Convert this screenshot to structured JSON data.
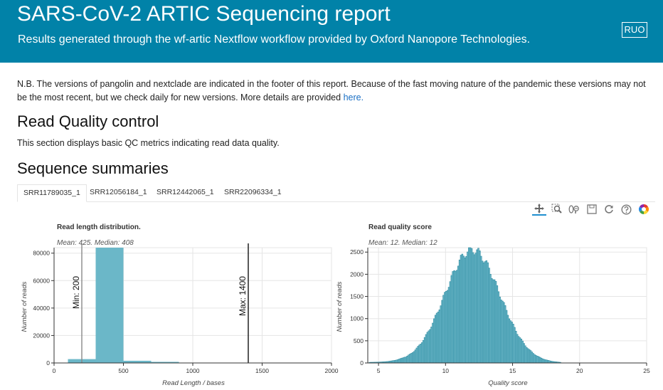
{
  "header": {
    "title": "SARS-CoV-2 ARTIC Sequencing report",
    "subtitle": "Results generated through the wf-artic Nextflow workflow provided by Oxford Nanopore Technologies.",
    "badge": "RUO"
  },
  "note": {
    "text": "N.B. The versions of pangolin and nextclade are indicated in the footer of this report. Because of the fast moving nature of the pandemic these versions may not be the most recent, but we check daily for new versions. More details are provided ",
    "link": "here."
  },
  "read_qc": {
    "heading": "Read Quality control",
    "description": "This section displays basic QC metrics indicating read data quality."
  },
  "seq": {
    "heading": "Sequence summaries",
    "tabs": [
      "SRR11789035_1",
      "SRR12056184_1",
      "SRR12442065_1",
      "SRR22096334_1"
    ],
    "active_tab": 0
  },
  "toolbar": {
    "icons": [
      "pan-icon",
      "box-zoom-icon",
      "wheel-zoom-icon",
      "save-icon",
      "reset-icon",
      "help-icon",
      "bokeh-logo-icon"
    ]
  },
  "colors": {
    "banner": "#0182a8",
    "bar": "#6bb7c8",
    "bar_stroke": "#2c8aa0"
  },
  "chart_data": [
    {
      "type": "bar",
      "title": "Read length distribution.",
      "subtitle": "Mean: 425. Median: 408",
      "xlabel": "Read Length / bases",
      "ylabel": "Number of reads",
      "xlim": [
        0,
        2000
      ],
      "ylim": [
        0,
        84000
      ],
      "xticks": [
        "0",
        "500",
        "1000",
        "1500",
        "2000"
      ],
      "xtick_values": [
        0,
        500,
        1000,
        1500,
        2000
      ],
      "yticks": [
        "0",
        "20000",
        "40000",
        "60000",
        "80000"
      ],
      "ytick_values": [
        0,
        20000,
        40000,
        60000,
        80000
      ],
      "bins": [
        {
          "x0": 100,
          "x1": 300,
          "value": 2800
        },
        {
          "x0": 300,
          "x1": 500,
          "value": 84000
        },
        {
          "x0": 500,
          "x1": 700,
          "value": 1600
        },
        {
          "x0": 700,
          "x1": 900,
          "value": 800
        },
        {
          "x0": 900,
          "x1": 1100,
          "value": 100
        }
      ],
      "vlines": [
        {
          "x": 200,
          "label": "Min: 200",
          "color": "#888888"
        },
        {
          "x": 1400,
          "label": "Max: 1400",
          "color": "#111111"
        }
      ]
    },
    {
      "type": "bar",
      "title": "Read quality score",
      "subtitle": "Mean: 12. Median: 12",
      "xlabel": "Quality score",
      "ylabel": "Number of reads",
      "xlim": [
        4.2,
        25
      ],
      "ylim": [
        0,
        2600
      ],
      "xticks": [
        "5",
        "10",
        "15",
        "20",
        "25"
      ],
      "xtick_values": [
        5,
        10,
        15,
        20,
        25
      ],
      "yticks": [
        "0",
        "500",
        "1000",
        "1500",
        "2000",
        "2500"
      ],
      "ytick_values": [
        0,
        500,
        1000,
        1500,
        2000,
        2500
      ],
      "bin_width": 0.1,
      "gaussian": {
        "mu": 12.0,
        "sigma": 2.05,
        "peak": 2550,
        "min_x": 4.3,
        "max_x": 18.5,
        "floor": 12
      }
    }
  ]
}
